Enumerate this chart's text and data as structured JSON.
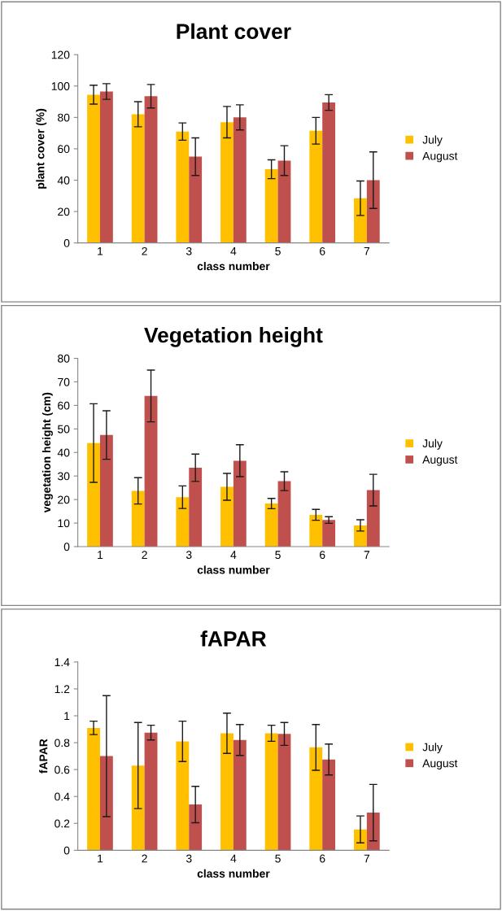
{
  "chart_data": [
    {
      "type": "bar",
      "title": "Plant cover",
      "xlabel": "class number",
      "ylabel": "plant cover (%)",
      "categories": [
        "1",
        "2",
        "3",
        "4",
        "5",
        "6",
        "7"
      ],
      "ylim": [
        0,
        120
      ],
      "yticks": [
        0,
        20,
        40,
        60,
        80,
        100,
        120
      ],
      "legend": "right",
      "grid": false,
      "series": [
        {
          "name": "July",
          "color": "#ffc000",
          "values": [
            94.5,
            82,
            71,
            77,
            47,
            71.5,
            28.5
          ],
          "errors": [
            6,
            8,
            5.5,
            10,
            6,
            8.5,
            11
          ]
        },
        {
          "name": "August",
          "color": "#c0504d",
          "values": [
            96.5,
            93.5,
            55,
            80,
            52.5,
            89.5,
            40
          ],
          "errors": [
            5,
            7.5,
            12,
            8,
            9.5,
            5,
            18
          ]
        }
      ]
    },
    {
      "type": "bar",
      "title": "Vegetation height",
      "xlabel": "class number",
      "ylabel": "vegetation height (cm)",
      "categories": [
        "1",
        "2",
        "3",
        "4",
        "5",
        "6",
        "7"
      ],
      "ylim": [
        0,
        80
      ],
      "yticks": [
        0,
        10,
        20,
        30,
        40,
        50,
        60,
        70,
        80
      ],
      "legend": "right",
      "grid": false,
      "series": [
        {
          "name": "July",
          "color": "#ffc000",
          "values": [
            44,
            23.7,
            21,
            25.4,
            18.3,
            13.5,
            9
          ],
          "errors": [
            16.7,
            5.6,
            4.8,
            5.7,
            2.2,
            2.3,
            2.4
          ]
        },
        {
          "name": "August",
          "color": "#c0504d",
          "values": [
            47.4,
            64,
            33.5,
            36.5,
            27.8,
            11.3,
            24
          ],
          "errors": [
            10.3,
            11,
            5.8,
            6.8,
            4,
            1.4,
            6.7
          ]
        }
      ]
    },
    {
      "type": "bar",
      "title": "fAPAR",
      "xlabel": "class number",
      "ylabel": "fAPAR",
      "categories": [
        "1",
        "2",
        "3",
        "4",
        "5",
        "6",
        "7"
      ],
      "ylim": [
        0,
        1.4
      ],
      "yticks": [
        0,
        0.2,
        0.4,
        0.6,
        0.8,
        1,
        1.2,
        1.4
      ],
      "legend": "right",
      "grid": false,
      "series": [
        {
          "name": "July",
          "color": "#ffc000",
          "values": [
            0.91,
            0.63,
            0.81,
            0.87,
            0.87,
            0.765,
            0.155
          ],
          "errors": [
            0.05,
            0.32,
            0.15,
            0.15,
            0.06,
            0.17,
            0.1
          ]
        },
        {
          "name": "August",
          "color": "#c0504d",
          "values": [
            0.7,
            0.875,
            0.34,
            0.82,
            0.865,
            0.675,
            0.28
          ],
          "errors": [
            0.45,
            0.055,
            0.135,
            0.115,
            0.085,
            0.115,
            0.21
          ]
        }
      ]
    }
  ]
}
